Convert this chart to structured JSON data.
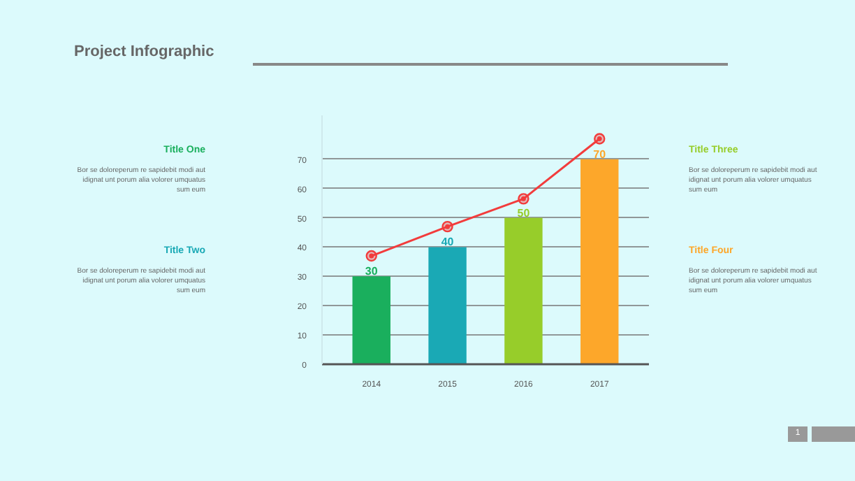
{
  "chart_data": {
    "type": "bar",
    "title": "Project Infographic",
    "categories": [
      "2014",
      "2015",
      "2016",
      "2017"
    ],
    "series": [
      {
        "type": "bar",
        "colors": [
          "#1aaf5d",
          "#1aa9b5",
          "#97cd2a",
          "#fda72a"
        ],
        "values": [
          30,
          40,
          50,
          70
        ],
        "value_labels": [
          "30",
          "40",
          "50",
          "70"
        ]
      },
      {
        "type": "line",
        "color": "#f23c3c",
        "marker": "circle",
        "values": [
          37,
          47,
          56.5,
          77
        ]
      }
    ],
    "ylim": [
      0,
      85
    ],
    "yticks": [
      0,
      10,
      20,
      30,
      40,
      50,
      60,
      70
    ],
    "grid": "y",
    "annotations": [
      "Title One",
      "Bor se doloreperum re sapidebit modi aut idignat unt porum alia volorer umquatus sum eum",
      "Title Two",
      "Bor se doloreperum re sapidebit modi aut idignat unt porum alia volorer umquatus sum eum",
      "Title Three",
      "Bor se doloreperum re sapidebit modi aut idignat unt porum alia volorer umquatus sum eum",
      "Title Four",
      "Bor se doloreperum re sapidebit modi aut idignat unt porum alia volorer umquatus sum eum",
      "1"
    ]
  }
}
